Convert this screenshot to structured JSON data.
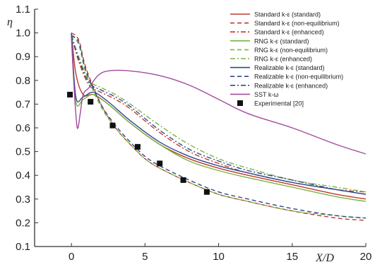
{
  "chart_data": {
    "type": "line",
    "title": "",
    "xlabel": "X/D",
    "ylabel": "η",
    "xlim": [
      -2.5,
      20
    ],
    "ylim": [
      0.1,
      1.1
    ],
    "xticks": [
      "0",
      "5",
      "10",
      "15",
      "20"
    ],
    "yticks": [
      "0.1",
      "0.2",
      "0.3",
      "0.4",
      "0.5",
      "0.6",
      "0.7",
      "0.8",
      "0.9",
      "1.0",
      "1.1"
    ],
    "grid": false,
    "legend_position": "top-right",
    "series": [
      {
        "name": "Standard k-ε (standard)",
        "color": "#c0392b",
        "dash": "solid",
        "x": [
          0,
          0.3,
          0.8,
          1.5,
          2.5,
          4,
          6,
          8,
          10,
          12,
          15,
          18,
          20
        ],
        "y": [
          1.0,
          0.83,
          0.74,
          0.74,
          0.7,
          0.62,
          0.53,
          0.47,
          0.43,
          0.4,
          0.36,
          0.32,
          0.3
        ]
      },
      {
        "name": "Standard k-ε (non-equilibrium)",
        "color": "#c0392b",
        "dash": "dash",
        "x": [
          0,
          0.5,
          1,
          2,
          3,
          4,
          5,
          6,
          8,
          10,
          12,
          15,
          18,
          20
        ],
        "y": [
          1.0,
          0.97,
          0.85,
          0.7,
          0.6,
          0.53,
          0.47,
          0.43,
          0.37,
          0.32,
          0.29,
          0.25,
          0.22,
          0.21
        ]
      },
      {
        "name": "Standard k-ε (enhanced)",
        "color": "#c0392b",
        "dash": "dashdot",
        "x": [
          0,
          0.5,
          1.2,
          2,
          3,
          4,
          6,
          8,
          10,
          12,
          15,
          18,
          20
        ],
        "y": [
          0.99,
          0.88,
          0.78,
          0.75,
          0.72,
          0.68,
          0.58,
          0.5,
          0.45,
          0.41,
          0.37,
          0.34,
          0.33
        ]
      },
      {
        "name": "RNG k-ε (standard)",
        "color": "#7cb342",
        "dash": "solid",
        "x": [
          0,
          0.3,
          0.8,
          1.5,
          2.5,
          4,
          6,
          8,
          10,
          12,
          15,
          18,
          20
        ],
        "y": [
          0.99,
          0.71,
          0.72,
          0.74,
          0.7,
          0.62,
          0.53,
          0.46,
          0.42,
          0.39,
          0.35,
          0.31,
          0.29
        ]
      },
      {
        "name": "RNG k-ε (non-equilibrium)",
        "color": "#7cb342",
        "dash": "dash",
        "x": [
          0,
          0.5,
          1,
          2,
          3,
          4,
          5,
          6,
          8,
          10,
          12,
          15,
          18,
          20
        ],
        "y": [
          0.99,
          0.95,
          0.83,
          0.69,
          0.6,
          0.53,
          0.47,
          0.43,
          0.37,
          0.32,
          0.29,
          0.25,
          0.23,
          0.22
        ]
      },
      {
        "name": "RNG k-ε (enhanced)",
        "color": "#7cb342",
        "dash": "dashdot",
        "x": [
          0,
          0.5,
          1.2,
          2,
          3,
          4,
          6,
          8,
          10,
          12,
          15,
          18,
          20
        ],
        "y": [
          0.99,
          0.9,
          0.8,
          0.77,
          0.74,
          0.7,
          0.61,
          0.53,
          0.47,
          0.43,
          0.38,
          0.35,
          0.33
        ]
      },
      {
        "name": "Realizable k-ε (standard)",
        "color": "#2e4a8c",
        "dash": "solid",
        "x": [
          0,
          0.3,
          0.8,
          1.5,
          2.5,
          4,
          6,
          8,
          10,
          12,
          15,
          18,
          20
        ],
        "y": [
          1.0,
          0.73,
          0.73,
          0.75,
          0.71,
          0.63,
          0.54,
          0.48,
          0.44,
          0.41,
          0.37,
          0.34,
          0.32
        ]
      },
      {
        "name": "Realizable k-ε (non-equilibrium)",
        "color": "#2e4a8c",
        "dash": "dash",
        "x": [
          0,
          0.5,
          1,
          2,
          3,
          4,
          5,
          6,
          8,
          10,
          12,
          15,
          18,
          20
        ],
        "y": [
          0.99,
          0.96,
          0.84,
          0.7,
          0.61,
          0.54,
          0.48,
          0.44,
          0.38,
          0.33,
          0.3,
          0.26,
          0.23,
          0.22
        ]
      },
      {
        "name": "Realizable k-ε (enhanced)",
        "color": "#2e4a8c",
        "dash": "dashdot",
        "x": [
          0,
          0.5,
          1.2,
          2,
          3,
          4,
          6,
          8,
          10,
          12,
          15,
          18,
          20
        ],
        "y": [
          0.99,
          0.89,
          0.79,
          0.76,
          0.73,
          0.69,
          0.59,
          0.51,
          0.46,
          0.42,
          0.38,
          0.34,
          0.32
        ]
      },
      {
        "name": "SST k-ω",
        "color": "#a34b9c",
        "dash": "solid",
        "x": [
          0,
          0.2,
          0.4,
          0.6,
          0.8,
          1.2,
          1.8,
          2.5,
          4,
          6,
          8,
          10,
          12,
          15,
          18,
          20
        ],
        "y": [
          0.98,
          0.75,
          0.6,
          0.66,
          0.74,
          0.77,
          0.82,
          0.84,
          0.84,
          0.82,
          0.78,
          0.72,
          0.66,
          0.6,
          0.53,
          0.49
        ]
      }
    ],
    "scatter": {
      "name": "Experimental [20]",
      "color": "#111111",
      "x": [
        -0.1,
        1.3,
        2.8,
        4.5,
        6.0,
        7.6,
        9.2
      ],
      "y": [
        0.74,
        0.71,
        0.61,
        0.52,
        0.45,
        0.38,
        0.33
      ]
    }
  }
}
